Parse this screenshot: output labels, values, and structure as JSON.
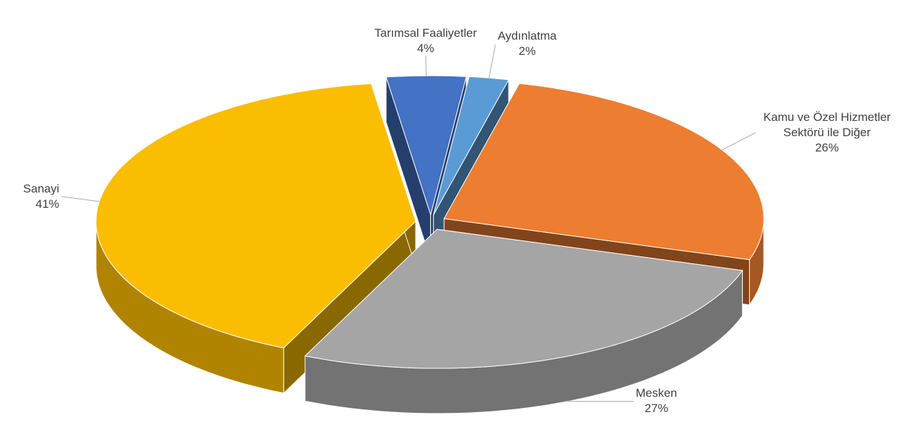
{
  "chart_data": {
    "type": "pie3d",
    "categories": [
      "Tarımsal Faaliyetler",
      "Aydınlatma",
      "Kamu ve Özel Hizmetler Sektörü ile Diğer",
      "Mesken",
      "Sanayi"
    ],
    "values": [
      4,
      2,
      26,
      27,
      41
    ],
    "value_labels": [
      "4%",
      "2%",
      "26%",
      "27%",
      "41%"
    ],
    "colors": [
      "#4472c4",
      "#5b9bd5",
      "#ed7d31",
      "#a5a5a5",
      "#fbbd00"
    ]
  }
}
